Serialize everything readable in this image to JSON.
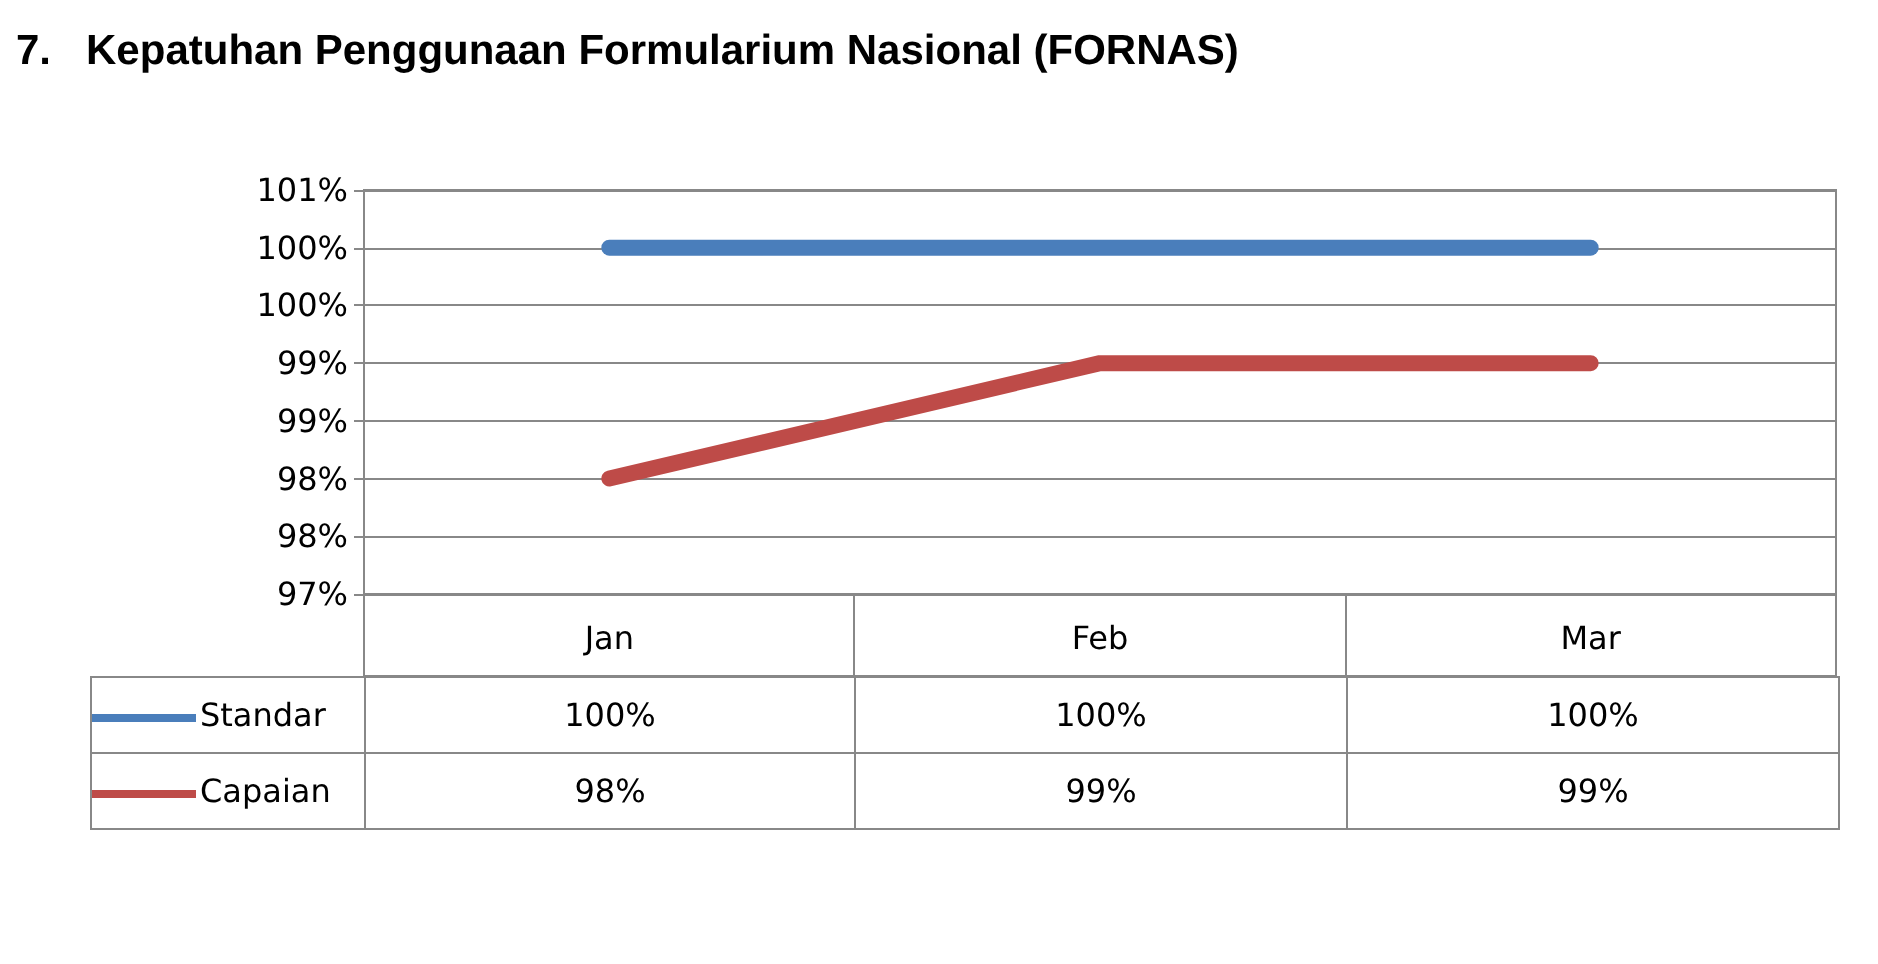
{
  "chart_data": {
    "type": "line",
    "title": "7.   Kepatuhan Penggunaan Formularium Nasional (FORNAS)",
    "categories": [
      "Jan",
      "Feb",
      "Mar"
    ],
    "series": [
      {
        "name": "Standar",
        "color": "#4a7ebb",
        "values": [
          100,
          100,
          100
        ],
        "value_labels": [
          "100%",
          "100%",
          "100%"
        ]
      },
      {
        "name": "Capaian",
        "color": "#be4b48",
        "values": [
          98,
          99,
          99
        ],
        "value_labels": [
          "98%",
          "99%",
          "99%"
        ]
      }
    ],
    "ylim": [
      97,
      100.5
    ],
    "yticks": [
      {
        "value": 97,
        "label": "97%"
      },
      {
        "value": 97.5,
        "label": "98%"
      },
      {
        "value": 98,
        "label": "98%"
      },
      {
        "value": 98.5,
        "label": "99%"
      },
      {
        "value": 99,
        "label": "99%"
      },
      {
        "value": 99.5,
        "label": "100%"
      },
      {
        "value": 100,
        "label": "100%"
      },
      {
        "value": 100.5,
        "label": "101%"
      }
    ],
    "grid": "y",
    "legend": "bottom",
    "marker": "none",
    "line_style": "solid"
  }
}
